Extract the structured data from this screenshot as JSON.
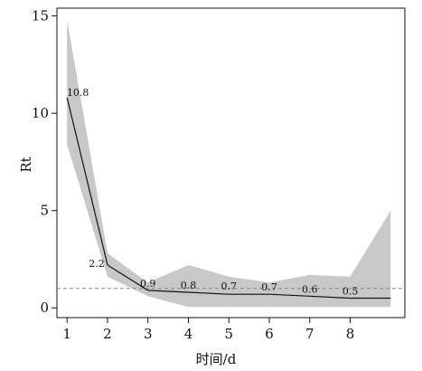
{
  "chart_data": {
    "type": "line",
    "title": "",
    "xlabel": "时间/d",
    "ylabel": "Rt",
    "x_ticks": [
      "1",
      "2",
      "3",
      "4",
      "5",
      "6",
      "7",
      "8"
    ],
    "y_ticks": [
      "0",
      "5",
      "10",
      "15"
    ],
    "xlim": [
      0.75,
      9.35
    ],
    "ylim": [
      -0.5,
      15.4
    ],
    "grid": false,
    "legend": "none",
    "reference_line": {
      "y": 1,
      "style": "dashed"
    },
    "series": [
      {
        "x": [
          1,
          2,
          3,
          4,
          5,
          6,
          7,
          8,
          9
        ],
        "values": [
          10.8,
          2.2,
          0.9,
          0.8,
          0.7,
          0.7,
          0.6,
          0.5,
          0.5
        ],
        "band_lower": [
          8.4,
          1.6,
          0.6,
          0.05,
          0.05,
          0.05,
          0.05,
          0.05,
          0.05
        ],
        "band_upper": [
          14.8,
          2.8,
          1.3,
          2.2,
          1.6,
          1.3,
          1.7,
          1.6,
          5.0
        ]
      }
    ],
    "data_labels": [
      "10.8",
      "2.2",
      "0.9",
      "0.8",
      "0.7",
      "0.7",
      "0.6",
      "0.5"
    ],
    "colors": {
      "band": "#c8c8c8",
      "line": "#111111",
      "reference": "#888888",
      "axis": "#111111"
    }
  }
}
